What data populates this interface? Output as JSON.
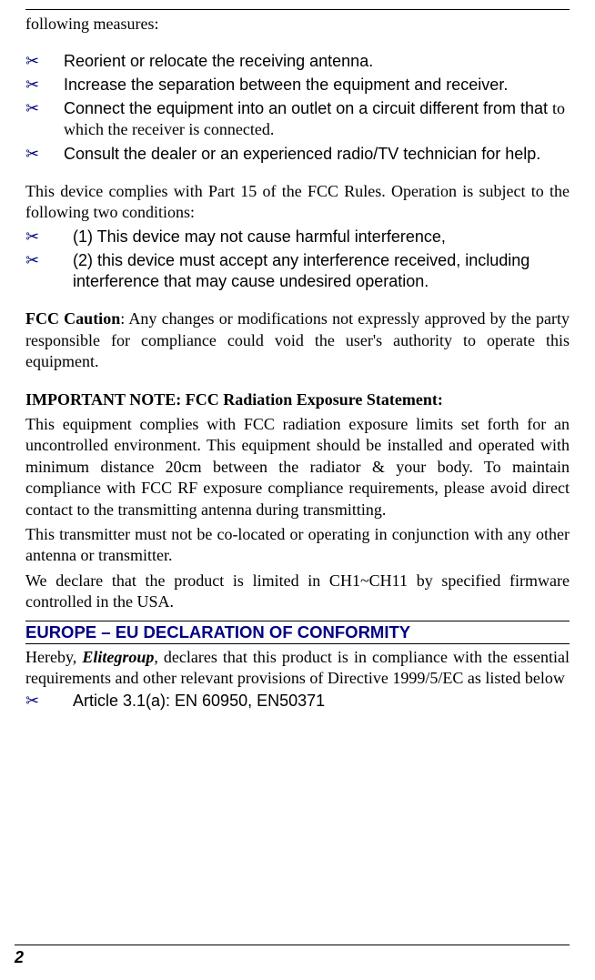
{
  "colors": {
    "accent": "#000080",
    "text": "#000000",
    "background": "#ffffff",
    "rule": "#000000"
  },
  "bullet_glyph": "✂",
  "intro_line": "following measures:",
  "measures": [
    "Reorient or relocate the receiving antenna.",
    "Increase the separation between the equipment and receiver.",
    "Connect the equipment into an outlet on a circuit different from that to which the receiver is connected.",
    "Consult the dealer or an experienced radio/TV technician for help."
  ],
  "compliance_intro": "This device complies with Part 15 of the FCC Rules. Operation is subject to the following two conditions:",
  "conditions": [
    "(1) This device may not cause harmful interference,",
    "(2) this device must accept any interference received, including interference that may cause undesired operation."
  ],
  "fcc_caution_label": "FCC Caution",
  "fcc_caution_text": ": Any changes or modifications not expressly approved by the party responsible for compliance could void the user's authority to operate this equipment.",
  "important_note_heading": "IMPORTANT NOTE: FCC Radiation Exposure Statement:",
  "radiation_para1": "This equipment complies with FCC radiation exposure limits set forth for an uncontrolled environment. This equipment should be installed and operated with minimum distance 20cm between the radiator & your body. To maintain compliance with FCC RF exposure compliance requirements, please avoid direct contact to the transmitting antenna during transmitting.",
  "radiation_para2": "This transmitter must not be co-located or operating in conjunction with any other antenna or transmitter.",
  "radiation_para3": "We declare that the product is limited in CH1~CH11 by specified firmware controlled in the USA.",
  "eu_header": "EUROPE – EU DECLARATION OF CONFORMITY",
  "eu_intro_prefix": "Hereby, ",
  "eu_brand": "Elitegroup",
  "eu_intro_suffix": ", declares that this product is in compliance with the essential requirements and other relevant provisions of Directive 1999/5/EC as listed below",
  "eu_articles": [
    "Article 3.1(a): EN 60950, EN50371"
  ],
  "page_number": "2"
}
